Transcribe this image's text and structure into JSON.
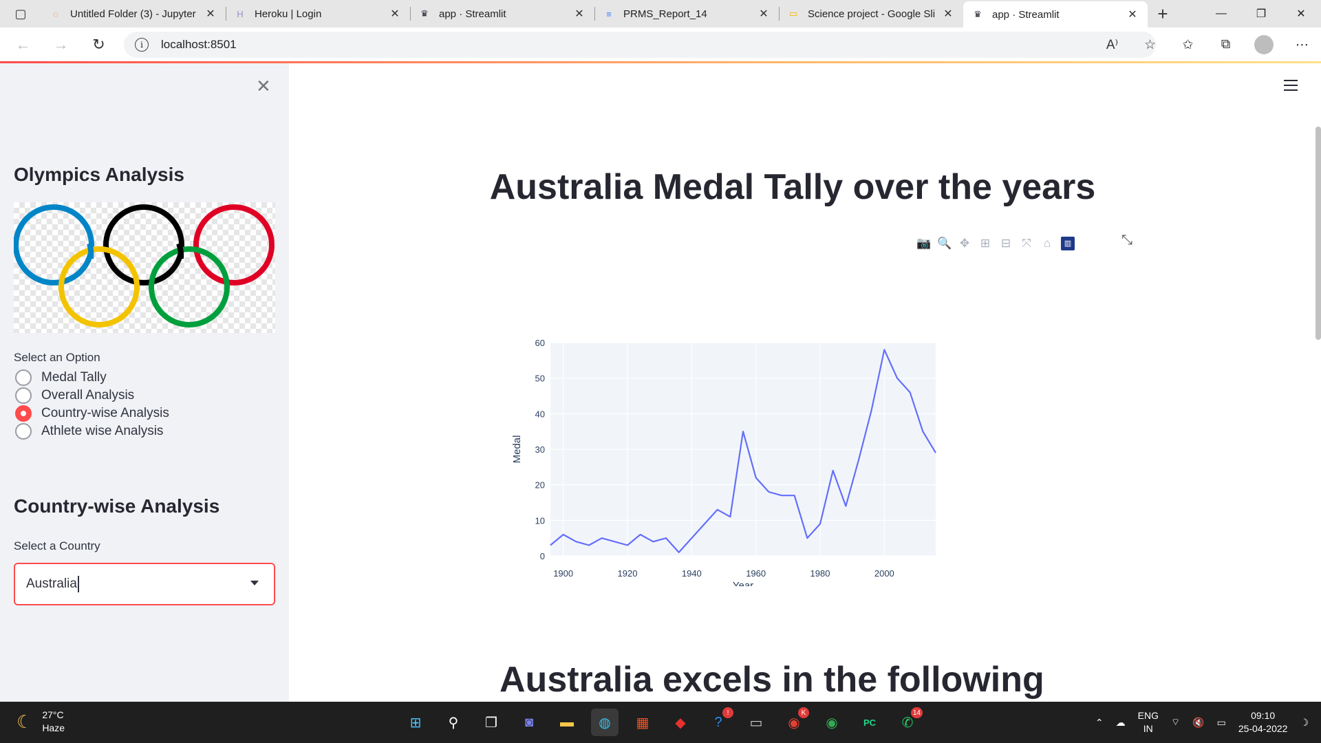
{
  "browser": {
    "tabs": [
      {
        "title": "Untitled Folder (3) - Jupyter",
        "icon": "jupyter-icon",
        "color": "#f37626",
        "glyph": "◌"
      },
      {
        "title": "Heroku | Login",
        "icon": "heroku-icon",
        "color": "#9c8ad0",
        "glyph": "H"
      },
      {
        "title": "app · Streamlit",
        "icon": "streamlit-icon",
        "color": "#262730",
        "glyph": "♛"
      },
      {
        "title": "PRMS_Report_14",
        "icon": "google-docs-icon",
        "color": "#4285f4",
        "glyph": "≡"
      },
      {
        "title": "Science project - Google Sli",
        "icon": "google-slides-icon",
        "color": "#f4b400",
        "glyph": "▭"
      },
      {
        "title": "app · Streamlit",
        "icon": "streamlit-icon",
        "color": "#262730",
        "glyph": "♛"
      }
    ],
    "active_tab": 5,
    "url": "localhost:8501"
  },
  "sidebar": {
    "title": "Olympics Analysis",
    "radio_label": "Select an Option",
    "options": [
      "Medal Tally",
      "Overall Analysis",
      "Country-wise Analysis",
      "Athlete wise Analysis"
    ],
    "selected_option": 2,
    "section_title": "Country-wise Analysis",
    "country_label": "Select a Country",
    "country_value": "Australia"
  },
  "main": {
    "heading": "Australia Medal Tally over the years",
    "second_heading": "Australia excels in the following"
  },
  "chart_data": {
    "type": "line",
    "title": "",
    "xlabel": "Year",
    "ylabel": "Medal",
    "xlim": [
      1896,
      2016
    ],
    "ylim": [
      0,
      60
    ],
    "x_ticks": [
      1900,
      1920,
      1940,
      1960,
      1980,
      2000
    ],
    "y_ticks": [
      0,
      10,
      20,
      30,
      40,
      50,
      60
    ],
    "color": "#636efa",
    "series": [
      {
        "x": [
          1896,
          1900,
          1904,
          1908,
          1912,
          1920,
          1924,
          1928,
          1932,
          1936,
          1948,
          1952,
          1956,
          1960,
          1964,
          1968,
          1972,
          1976,
          1980,
          1984,
          1988,
          1992,
          1996,
          2000,
          2004,
          2008,
          2012,
          2016
        ],
        "y": [
          3,
          6,
          4,
          3,
          5,
          3,
          6,
          4,
          5,
          1,
          13,
          11,
          35,
          22,
          18,
          17,
          17,
          5,
          9,
          24,
          14,
          27,
          41,
          58,
          50,
          46,
          35,
          29
        ]
      }
    ]
  },
  "taskbar": {
    "temperature": "27°C",
    "weather": "Haze",
    "language": "ENG",
    "region": "IN",
    "time": "09:10",
    "date": "25-04-2022",
    "apps": [
      {
        "name": "windows-start-icon",
        "glyph": "⊞",
        "color": "#4cc2ff"
      },
      {
        "name": "search-icon",
        "glyph": "⚲",
        "color": "#ffffff"
      },
      {
        "name": "task-view-icon",
        "glyph": "❐",
        "color": "#ffffff"
      },
      {
        "name": "teams-chat-icon",
        "glyph": "◙",
        "color": "#7b83eb"
      },
      {
        "name": "file-explorer-icon",
        "glyph": "▬",
        "color": "#f8c74b"
      },
      {
        "name": "edge-browser-icon",
        "glyph": "◍",
        "color": "#35c1f1"
      },
      {
        "name": "microsoft-store-icon",
        "glyph": "▦",
        "color": "#f25022"
      },
      {
        "name": "app-red-icon",
        "glyph": "◆",
        "color": "#e8312f"
      },
      {
        "name": "help-icon",
        "glyph": "?",
        "color": "#2a8ef0"
      },
      {
        "name": "terminal-icon",
        "glyph": "▭",
        "color": "#cccccc"
      },
      {
        "name": "chrome-icon",
        "glyph": "◉",
        "color": "#e34133"
      },
      {
        "name": "chrome-profile-icon",
        "glyph": "◉",
        "color": "#34a853"
      },
      {
        "name": "pycharm-icon",
        "glyph": "PC",
        "color": "#21d789"
      },
      {
        "name": "whatsapp-icon",
        "glyph": "✆",
        "color": "#25d366"
      }
    ],
    "badges": {
      "help-icon": "!",
      "chrome-icon": "K",
      "whatsapp-icon": "14"
    }
  }
}
